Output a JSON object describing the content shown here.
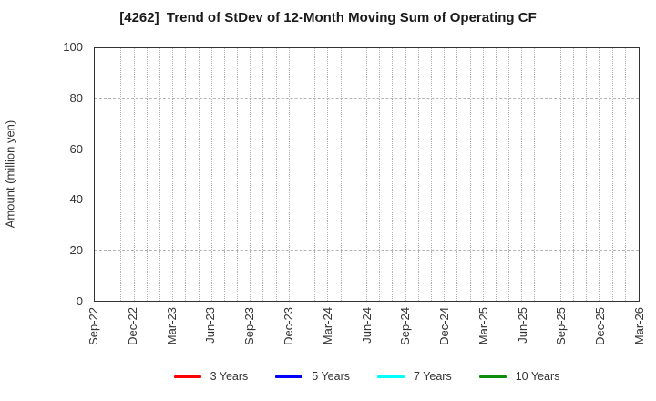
{
  "chart_data": {
    "type": "line",
    "title": "[4262]  Trend of StDev of 12-Month Moving Sum of Operating CF",
    "xlabel": "",
    "ylabel": "Amount (million yen)",
    "ylim": [
      0,
      100
    ],
    "yticks": [
      0,
      20,
      40,
      60,
      80,
      100
    ],
    "categories": [
      "Sep-22",
      "Dec-22",
      "Mar-23",
      "Jun-23",
      "Sep-23",
      "Dec-23",
      "Mar-24",
      "Jun-24",
      "Sep-24",
      "Dec-24",
      "Mar-25",
      "Jun-25",
      "Sep-25",
      "Dec-25",
      "Mar-26"
    ],
    "minor_x_divisions": 42,
    "grid": true,
    "legend_position": "bottom",
    "series": [
      {
        "name": "3 Years",
        "color": "#ff0000",
        "values": []
      },
      {
        "name": "5 Years",
        "color": "#0000ff",
        "values": []
      },
      {
        "name": "7 Years",
        "color": "#00ffff",
        "values": []
      },
      {
        "name": "10 Years",
        "color": "#0e8c0e",
        "values": []
      }
    ]
  },
  "colors": {
    "frame": "#333333",
    "grid": "#b0b0b0",
    "text": "#333333"
  }
}
